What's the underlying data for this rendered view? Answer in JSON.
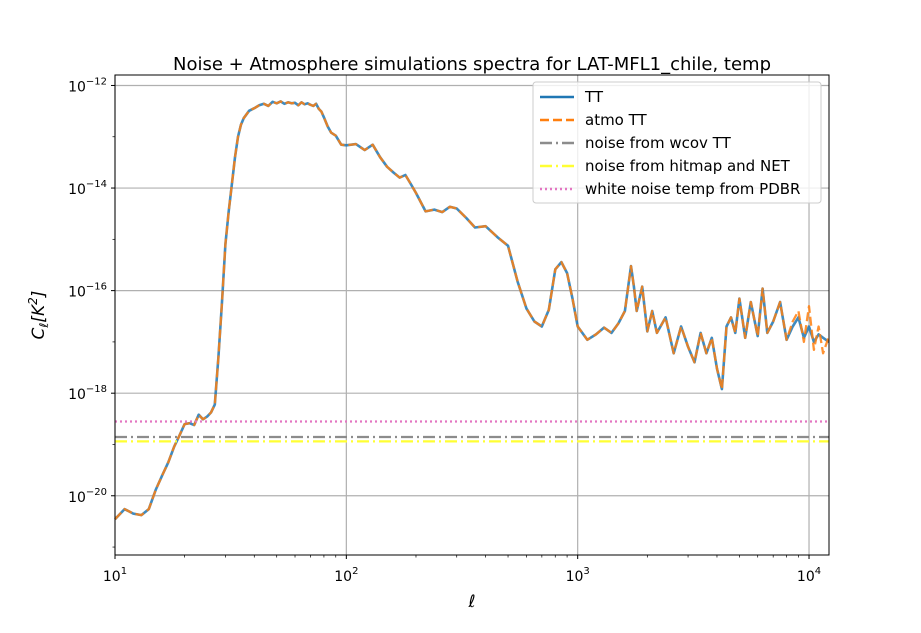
{
  "chart_data": {
    "type": "line",
    "title": "Noise + Atmosphere simulations spectra for LAT-MFL1_chile, temp",
    "xlabel": "ℓ",
    "ylabel": "C_ℓ[K²]",
    "xscale": "log",
    "yscale": "log",
    "xlim": [
      10,
      12200
    ],
    "ylim": [
      7e-22,
      1.6e-12
    ],
    "grid": true,
    "legend_position": "top-right",
    "x_ticks": [
      {
        "value": 10,
        "base": "10",
        "exp": "1"
      },
      {
        "value": 100,
        "base": "10",
        "exp": "2"
      },
      {
        "value": 1000,
        "base": "10",
        "exp": "3"
      },
      {
        "value": 10000,
        "base": "10",
        "exp": "4"
      }
    ],
    "y_ticks": [
      {
        "value": 1e-12,
        "base": "10",
        "exp": "−12"
      },
      {
        "value": 1e-14,
        "base": "10",
        "exp": "−14"
      },
      {
        "value": 1e-16,
        "base": "10",
        "exp": "−16"
      },
      {
        "value": 1e-18,
        "base": "10",
        "exp": "−18"
      },
      {
        "value": 1e-20,
        "base": "10",
        "exp": "−20"
      }
    ],
    "series": [
      {
        "name": "TT",
        "color": "#1f77b4",
        "style": "solid",
        "x": [
          10,
          11,
          12,
          13,
          14,
          15,
          16,
          17,
          18,
          19,
          20,
          21,
          22,
          23,
          24,
          25,
          26,
          27,
          28,
          29,
          30,
          31,
          32,
          33,
          34,
          35,
          36,
          38,
          40,
          42,
          44,
          46,
          48,
          50,
          52,
          54,
          56,
          58,
          60,
          62,
          64,
          66,
          68,
          70,
          72,
          74,
          76,
          78,
          80,
          83,
          86,
          90,
          95,
          100,
          110,
          120,
          130,
          140,
          150,
          160,
          170,
          180,
          190,
          200,
          220,
          240,
          260,
          280,
          300,
          330,
          360,
          400,
          450,
          500,
          550,
          600,
          650,
          700,
          750,
          800,
          850,
          900,
          950,
          1000,
          1100,
          1200,
          1300,
          1400,
          1500,
          1600,
          1700,
          1750,
          1800,
          1900,
          2000,
          2100,
          2200,
          2400,
          2600,
          2800,
          3000,
          3200,
          3400,
          3600,
          3800,
          4000,
          4200,
          4400,
          4600,
          4800,
          5000,
          5300,
          5600,
          6000,
          6300,
          6600,
          7000,
          7500,
          8000,
          8500,
          9000,
          9500,
          10000,
          10500,
          11000,
          11500,
          12200
        ],
        "y": [
          3.5e-21,
          5.5e-21,
          4.5e-21,
          4.2e-21,
          5.5e-21,
          1.3e-20,
          2.5e-20,
          4.5e-20,
          9e-20,
          1.5e-19,
          2.5e-19,
          2.6e-19,
          2.4e-19,
          3.8e-19,
          3.1e-19,
          3.5e-19,
          4.2e-19,
          6e-19,
          5e-18,
          6e-17,
          8e-16,
          3.5e-15,
          1.2e-14,
          4e-14,
          1e-13,
          1.7e-13,
          2.3e-13,
          3.2e-13,
          3.6e-13,
          4.1e-13,
          4.4e-13,
          4e-13,
          4.8e-13,
          4.5e-13,
          4.9e-13,
          4.4e-13,
          4.7e-13,
          4.5e-13,
          4.6e-13,
          4.1e-13,
          4.7e-13,
          4.3e-13,
          4.5e-13,
          4.2e-13,
          4e-13,
          4.4e-13,
          3.5e-13,
          3.1e-13,
          2.4e-13,
          1.6e-13,
          1.2e-13,
          1.05e-13,
          7e-14,
          6.8e-14,
          7.2e-14,
          5.5e-14,
          7e-14,
          4e-14,
          2.6e-14,
          2e-14,
          1.6e-14,
          1.8e-14,
          1.2e-14,
          8e-15,
          3.5e-15,
          3.8e-15,
          3.4e-15,
          4.3e-15,
          4e-15,
          2.6e-15,
          1.7e-15,
          1.8e-15,
          1.1e-15,
          7.5e-16,
          1.5e-16,
          4.5e-17,
          2.5e-17,
          2e-17,
          4.2e-17,
          2.6e-16,
          3.6e-16,
          2.2e-16,
          7e-17,
          2e-17,
          1.1e-17,
          1.4e-17,
          1.9e-17,
          1.5e-17,
          2.3e-17,
          4e-17,
          3e-16,
          1.2e-16,
          4e-17,
          1.2e-16,
          1.6e-17,
          4e-17,
          1.5e-17,
          3e-17,
          6e-18,
          2e-17,
          8e-18,
          4e-18,
          1.5e-17,
          6e-18,
          1.2e-17,
          3e-18,
          1.2e-18,
          2e-17,
          3e-17,
          1.5e-17,
          7e-17,
          1.2e-17,
          6e-17,
          1.3e-17,
          1.1e-16,
          1.5e-17,
          2.5e-17,
          6e-17,
          1.1e-17,
          2e-17,
          3e-17,
          1.2e-17,
          2e-17,
          1e-17,
          1.4e-17,
          1.2e-17,
          1e-17
        ]
      },
      {
        "name": "atmo TT",
        "color": "#ff7f0e",
        "style": "dashed",
        "x": [
          10,
          11,
          12,
          13,
          14,
          15,
          16,
          17,
          18,
          19,
          20,
          21,
          22,
          23,
          24,
          25,
          26,
          27,
          28,
          29,
          30,
          31,
          32,
          33,
          34,
          35,
          36,
          38,
          40,
          42,
          44,
          46,
          48,
          50,
          52,
          54,
          56,
          58,
          60,
          62,
          64,
          66,
          68,
          70,
          72,
          74,
          76,
          78,
          80,
          83,
          86,
          90,
          95,
          100,
          110,
          120,
          130,
          140,
          150,
          160,
          170,
          180,
          190,
          200,
          220,
          240,
          260,
          280,
          300,
          330,
          360,
          400,
          450,
          500,
          550,
          600,
          650,
          700,
          750,
          800,
          850,
          900,
          950,
          1000,
          1100,
          1200,
          1300,
          1400,
          1500,
          1600,
          1700,
          1750,
          1800,
          1900,
          2000,
          2100,
          2200,
          2400,
          2600,
          2800,
          3000,
          3200,
          3400,
          3600,
          3800,
          4000,
          4200,
          4400,
          4600,
          4800,
          5000,
          5300,
          5600,
          6000,
          6300,
          6600,
          7000,
          7500,
          8000,
          8500,
          9000,
          9500,
          10000,
          10500,
          11000,
          11500,
          12200
        ],
        "y": [
          3.5e-21,
          5.5e-21,
          4.5e-21,
          4.2e-21,
          5.5e-21,
          1.3e-20,
          2.5e-20,
          4.5e-20,
          9e-20,
          1.5e-19,
          2.5e-19,
          2.6e-19,
          2.4e-19,
          3.8e-19,
          3.1e-19,
          3.5e-19,
          4.2e-19,
          6e-19,
          5e-18,
          6e-17,
          8e-16,
          3.5e-15,
          1.2e-14,
          4e-14,
          1e-13,
          1.7e-13,
          2.3e-13,
          3.2e-13,
          3.6e-13,
          4.1e-13,
          4.4e-13,
          4e-13,
          4.8e-13,
          4.5e-13,
          4.9e-13,
          4.4e-13,
          4.7e-13,
          4.5e-13,
          4.6e-13,
          4.1e-13,
          4.7e-13,
          4.3e-13,
          4.5e-13,
          4.2e-13,
          4e-13,
          4.4e-13,
          3.5e-13,
          3.1e-13,
          2.4e-13,
          1.6e-13,
          1.2e-13,
          1.05e-13,
          7e-14,
          6.8e-14,
          7.2e-14,
          5.5e-14,
          7e-14,
          4e-14,
          2.6e-14,
          2e-14,
          1.6e-14,
          1.8e-14,
          1.2e-14,
          8e-15,
          3.5e-15,
          3.8e-15,
          3.4e-15,
          4.3e-15,
          4e-15,
          2.6e-15,
          1.7e-15,
          1.8e-15,
          1.1e-15,
          7.5e-16,
          1.5e-16,
          4.5e-17,
          2.5e-17,
          2e-17,
          4.2e-17,
          2.6e-16,
          3.6e-16,
          2.2e-16,
          7e-17,
          2e-17,
          1.1e-17,
          1.4e-17,
          1.9e-17,
          1.5e-17,
          2.3e-17,
          4e-17,
          3e-16,
          1.2e-16,
          4e-17,
          1.2e-16,
          1.6e-17,
          4e-17,
          1.5e-17,
          3e-17,
          6e-18,
          2e-17,
          8e-18,
          4e-18,
          1.5e-17,
          6e-18,
          1.2e-17,
          3e-18,
          1.2e-18,
          2e-17,
          3e-17,
          1.5e-17,
          7e-17,
          1.2e-17,
          6e-17,
          1.3e-17,
          1.1e-16,
          1.5e-17,
          2.5e-17,
          6e-17,
          1.1e-17,
          2.5e-17,
          4e-17,
          1e-17,
          5e-17,
          7e-18,
          2e-17,
          6e-18,
          1.3e-17
        ]
      },
      {
        "name": "noise from wcov TT",
        "color": "#8c8c8c",
        "style": "dashdot",
        "x": [
          10,
          12200
        ],
        "y": [
          1.4e-19,
          1.4e-19
        ]
      },
      {
        "name": "noise from hitmap and NET",
        "color": "#ffff33",
        "style": "dashdot",
        "x": [
          10,
          12200
        ],
        "y": [
          1.15e-19,
          1.15e-19
        ]
      },
      {
        "name": "white noise temp from PDBR",
        "color": "#e377c2",
        "style": "dotted",
        "x": [
          10,
          12200
        ],
        "y": [
          2.8e-19,
          2.8e-19
        ]
      }
    ]
  }
}
